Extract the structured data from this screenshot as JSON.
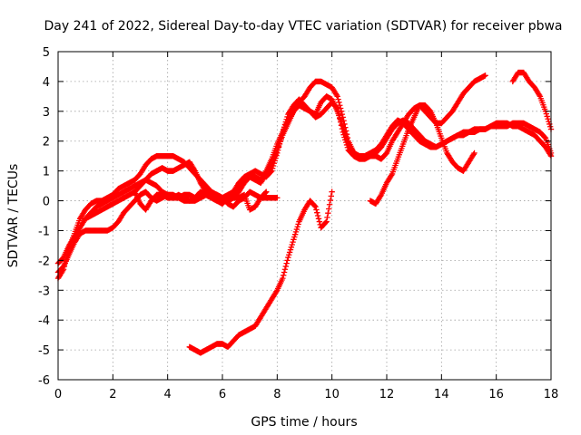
{
  "chart_data": {
    "type": "scatter",
    "title": "Day 241 of 2022, Sidereal Day-to-day VTEC variation (SDTVAR) for receiver pbwa",
    "xlabel": "GPS time / hours",
    "ylabel": "SDTVAR / TECUs",
    "xlim": [
      0,
      18
    ],
    "ylim": [
      -6,
      5
    ],
    "xticks": [
      0,
      2,
      4,
      6,
      8,
      10,
      12,
      14,
      16,
      18
    ],
    "yticks": [
      -6,
      -5,
      -4,
      -3,
      -2,
      -1,
      0,
      1,
      2,
      3,
      4,
      5
    ],
    "grid": true,
    "marker": "+",
    "color": "#ff0000",
    "series": [
      {
        "x": [
          0.0,
          0.2,
          0.4,
          0.6,
          0.8,
          1.0,
          1.2,
          1.4,
          1.6,
          1.8,
          2.0,
          2.2,
          2.4,
          2.6,
          2.8,
          3.0,
          3.2,
          3.4,
          3.6,
          3.8,
          4.0,
          4.2,
          4.4,
          4.6,
          4.8,
          5.0,
          5.2,
          5.4,
          5.6,
          5.8,
          6.0,
          6.2,
          6.4,
          6.6,
          6.8,
          7.0,
          7.2,
          7.4,
          7.6,
          7.8,
          8.0,
          8.2,
          8.4,
          8.6,
          8.8,
          9.0,
          9.2,
          9.4,
          9.6,
          9.8,
          10.0,
          10.2,
          10.4,
          10.6,
          10.8,
          11.0,
          11.2,
          11.4,
          11.6,
          11.8,
          12.0,
          12.2,
          12.4,
          12.6,
          12.8,
          13.0,
          13.2,
          13.4,
          13.6,
          13.8,
          14.0,
          14.2,
          14.4,
          14.6,
          14.8,
          15.0,
          15.2,
          15.4,
          15.6
        ],
        "y": [
          -2.1,
          -1.9,
          -1.5,
          -1.2,
          -0.9,
          -0.6,
          -0.4,
          -0.2,
          -0.1,
          0.0,
          0.1,
          0.2,
          0.3,
          0.4,
          0.5,
          0.6,
          0.7,
          0.6,
          0.5,
          0.3,
          0.2,
          0.1,
          0.1,
          0.2,
          0.2,
          0.1,
          0.1,
          0.2,
          0.1,
          0.0,
          0.1,
          0.2,
          0.3,
          0.5,
          0.6,
          0.8,
          0.7,
          0.6,
          0.9,
          1.2,
          1.7,
          2.2,
          2.6,
          3.0,
          3.3,
          3.5,
          3.8,
          4.0,
          4.0,
          3.9,
          3.8,
          3.5,
          2.8,
          2.0,
          1.6,
          1.5,
          1.5,
          1.5,
          1.5,
          1.4,
          1.6,
          2.0,
          2.3,
          2.6,
          2.9,
          3.1,
          3.2,
          3.0,
          2.8,
          2.6,
          2.6,
          2.8,
          3.0,
          3.3,
          3.6,
          3.8,
          4.0,
          4.1,
          4.2
        ]
      },
      {
        "x": [
          0.0,
          0.2,
          0.4,
          0.6,
          0.8,
          1.0,
          1.2,
          1.4,
          1.6,
          1.8,
          2.0,
          2.2,
          2.4,
          2.6,
          2.8,
          3.0,
          3.2,
          3.4,
          3.6,
          3.8,
          4.0,
          4.2,
          4.4,
          4.6,
          4.8,
          5.0,
          5.2,
          5.4,
          5.6,
          5.8,
          6.0,
          6.2,
          6.4,
          6.6,
          6.8,
          7.0,
          7.2,
          7.4,
          7.6,
          7.8,
          8.0,
          8.2,
          8.4,
          8.6,
          8.8,
          9.0,
          9.2,
          9.4,
          9.6,
          9.8,
          10.0,
          10.2,
          10.4,
          10.6,
          10.8,
          11.0,
          11.2,
          11.4,
          11.6,
          11.8,
          12.0,
          12.2,
          12.4,
          12.6,
          12.8,
          13.0,
          13.2,
          13.4,
          13.6,
          13.8,
          14.0,
          14.2,
          14.4,
          14.6,
          14.8,
          15.0,
          15.2,
          15.4,
          15.6,
          15.8,
          16.0,
          16.2,
          16.4,
          16.6,
          16.8,
          17.0,
          17.2,
          17.4,
          17.6,
          17.8,
          18.0
        ],
        "y": [
          -2.4,
          -2.2,
          -1.8,
          -1.4,
          -1.1,
          -1.0,
          -1.0,
          -1.0,
          -1.0,
          -1.0,
          -0.9,
          -0.7,
          -0.4,
          -0.2,
          0.0,
          0.2,
          0.3,
          0.1,
          0.0,
          0.1,
          0.2,
          0.2,
          0.1,
          0.0,
          0.0,
          0.1,
          0.3,
          0.2,
          0.1,
          0.0,
          -0.1,
          0.1,
          0.3,
          0.6,
          0.8,
          0.9,
          0.8,
          0.7,
          1.0,
          1.4,
          1.9,
          2.3,
          2.7,
          3.0,
          3.2,
          3.1,
          3.0,
          2.9,
          3.3,
          3.5,
          3.4,
          3.0,
          2.5,
          1.9,
          1.6,
          1.5,
          1.5,
          1.6,
          1.7,
          1.9,
          2.2,
          2.5,
          2.7,
          2.6,
          2.4,
          2.2,
          2.0,
          1.9,
          1.8,
          1.8,
          1.9,
          2.0,
          2.1,
          2.2,
          2.3,
          2.3,
          2.4,
          2.4,
          2.4,
          2.5,
          2.5,
          2.5,
          2.5,
          2.6,
          2.6,
          2.6,
          2.5,
          2.4,
          2.3,
          2.1,
          1.6
        ]
      },
      {
        "x": [
          0.0,
          0.2,
          0.4,
          0.6,
          0.8,
          1.0,
          1.2,
          1.4,
          1.6,
          1.8,
          2.0,
          2.2,
          2.4,
          2.6,
          2.8,
          3.0,
          3.2,
          3.4,
          3.6,
          3.8,
          4.0,
          4.2,
          4.4,
          4.6,
          4.8,
          5.0,
          5.2,
          5.4,
          5.6,
          5.8,
          6.0,
          6.2,
          6.4,
          6.6,
          6.8,
          7.0,
          7.2,
          7.4,
          7.6,
          7.8,
          8.0,
          8.2,
          8.4,
          8.6,
          8.8,
          9.0,
          9.2,
          9.4,
          9.6,
          9.8,
          10.0,
          10.2,
          10.4,
          10.6,
          10.8,
          11.0,
          11.2,
          11.4,
          11.6,
          11.8,
          12.0,
          12.2,
          12.4,
          12.6,
          12.8,
          13.0,
          13.2,
          13.4,
          13.6,
          13.8,
          14.0,
          14.2,
          14.4,
          14.6,
          14.8,
          15.0,
          15.2,
          15.4,
          15.6,
          15.8,
          16.0,
          16.2,
          16.4,
          16.6,
          16.8,
          17.0,
          17.2,
          17.4,
          17.6,
          17.8,
          18.0
        ],
        "y": [
          -2.6,
          -2.3,
          -1.6,
          -1.1,
          -0.6,
          -0.3,
          -0.1,
          0.0,
          0.0,
          0.1,
          0.2,
          0.4,
          0.5,
          0.6,
          0.7,
          0.9,
          1.2,
          1.4,
          1.5,
          1.5,
          1.5,
          1.5,
          1.4,
          1.3,
          1.1,
          0.9,
          0.7,
          0.5,
          0.3,
          0.2,
          0.1,
          0.0,
          0.1,
          0.3,
          0.6,
          0.9,
          1.0,
          0.9,
          0.8,
          1.0,
          1.6,
          2.3,
          2.9,
          3.2,
          3.4,
          3.2,
          3.0,
          2.8,
          2.9,
          3.1,
          3.3,
          3.1,
          2.3,
          1.7,
          1.5,
          1.4,
          1.4,
          1.5,
          1.6,
          1.8,
          2.1,
          2.4,
          2.6,
          2.7,
          2.6,
          2.4,
          2.2,
          2.0,
          1.9,
          1.8,
          1.9,
          2.0,
          2.1,
          2.2,
          2.2,
          2.3,
          2.3,
          2.4,
          2.4,
          2.5,
          2.6,
          2.6,
          2.6,
          2.5,
          2.5,
          2.4,
          2.3,
          2.2,
          2.0,
          1.8,
          1.5
        ]
      },
      {
        "x": [
          1.0,
          1.2,
          1.4,
          1.6,
          1.8,
          2.0,
          2.2,
          2.4,
          2.6,
          2.8,
          3.0,
          3.2,
          3.4,
          3.6,
          3.8,
          4.0,
          4.2,
          4.4,
          4.6,
          4.8,
          5.0,
          5.2,
          5.4,
          5.6,
          5.8,
          6.0,
          6.2,
          6.4,
          6.6,
          6.8,
          7.0,
          7.2,
          7.4,
          7.6,
          7.8,
          8.0
        ],
        "y": [
          -0.6,
          -0.5,
          -0.4,
          -0.3,
          -0.2,
          -0.1,
          0.0,
          0.1,
          0.2,
          0.3,
          -0.1,
          -0.3,
          0.0,
          0.2,
          0.2,
          0.1,
          0.1,
          0.2,
          0.1,
          0.0,
          0.0,
          0.1,
          0.2,
          0.2,
          0.2,
          0.1,
          -0.1,
          -0.2,
          0.0,
          0.1,
          0.3,
          0.2,
          0.1,
          0.1,
          0.1,
          0.1
        ]
      },
      {
        "x": [
          2.8,
          3.0,
          3.2,
          3.4,
          3.6,
          3.8,
          4.0,
          4.2,
          4.4,
          4.6,
          4.8,
          5.0,
          5.2,
          5.4,
          5.6,
          5.8,
          6.0,
          6.2,
          6.4,
          6.6,
          6.8,
          7.0,
          7.2,
          7.4,
          7.6
        ],
        "y": [
          0.3,
          0.5,
          0.7,
          0.9,
          1.0,
          1.1,
          1.0,
          1.0,
          1.1,
          1.2,
          1.3,
          1.0,
          0.6,
          0.3,
          0.2,
          0.1,
          0.0,
          0.0,
          0.1,
          0.1,
          0.2,
          -0.3,
          -0.2,
          0.1,
          0.3
        ]
      },
      {
        "x": [
          4.8,
          5.0,
          5.2,
          5.4,
          5.6,
          5.8,
          6.0,
          6.2,
          6.4,
          6.6,
          6.8,
          7.0,
          7.2,
          7.4,
          7.6,
          7.8,
          8.0,
          8.2,
          8.4,
          8.6,
          8.8,
          9.0,
          9.2,
          9.4,
          9.6,
          9.8,
          10.0
        ],
        "y": [
          -4.9,
          -5.0,
          -5.1,
          -5.0,
          -4.9,
          -4.8,
          -4.8,
          -4.9,
          -4.7,
          -4.5,
          -4.4,
          -4.3,
          -4.2,
          -3.9,
          -3.6,
          -3.3,
          -3.0,
          -2.6,
          -1.9,
          -1.3,
          -0.7,
          -0.3,
          0.0,
          -0.2,
          -0.9,
          -0.7,
          0.3
        ]
      },
      {
        "x": [
          11.4,
          11.6,
          11.8,
          12.0,
          12.2,
          12.4,
          12.6,
          12.8,
          13.0,
          13.2,
          13.4,
          13.6,
          13.8,
          14.0,
          14.2,
          14.4,
          14.6,
          14.8,
          15.0,
          15.2
        ],
        "y": [
          0.0,
          -0.1,
          0.2,
          0.6,
          0.9,
          1.4,
          1.9,
          2.4,
          2.8,
          3.2,
          3.2,
          3.0,
          2.6,
          2.1,
          1.6,
          1.3,
          1.1,
          1.0,
          1.3,
          1.6
        ]
      },
      {
        "x": [
          16.6,
          16.8,
          17.0,
          17.2,
          17.4,
          17.6,
          17.8,
          18.0
        ],
        "y": [
          4.0,
          4.3,
          4.3,
          4.0,
          3.8,
          3.5,
          3.0,
          2.4
        ]
      }
    ]
  }
}
